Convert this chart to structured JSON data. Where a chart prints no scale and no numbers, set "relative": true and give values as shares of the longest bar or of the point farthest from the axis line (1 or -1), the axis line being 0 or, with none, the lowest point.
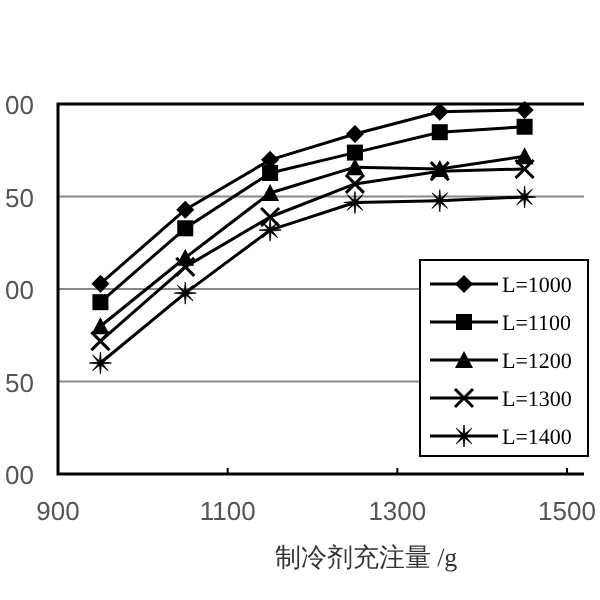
{
  "chart_data": {
    "type": "line",
    "xlabel": "制冷剂充注量 /g",
    "x": [
      950,
      1050,
      1150,
      1250,
      1350,
      1450
    ],
    "series": [
      {
        "name": "L=1000",
        "color": "#000000",
        "marker": "diamond",
        "values": [
          0.523,
          0.726,
          0.863,
          0.934,
          0.995,
          1
        ]
      },
      {
        "name": "L=1100",
        "color": "#000000",
        "marker": "square",
        "values": [
          0.472,
          0.675,
          0.827,
          0.883,
          0.939,
          0.954
        ]
      },
      {
        "name": "L=1200",
        "color": "#000000",
        "marker": "triangle",
        "values": [
          0.406,
          0.594,
          0.772,
          0.843,
          0.838,
          0.873
        ]
      },
      {
        "name": "L=1300",
        "color": "#000000",
        "marker": "cross",
        "values": [
          0.365,
          0.569,
          0.706,
          0.797,
          0.832,
          0.838
        ]
      },
      {
        "name": "L=1400",
        "color": "#000000",
        "marker": "star",
        "values": [
          0.305,
          0.497,
          0.67,
          0.746,
          0.751,
          0.761
        ]
      }
    ],
    "relative": true,
    "annotations": [
      "00",
      "50",
      "00",
      "50",
      "00"
    ],
    "xlim": [
      900,
      1520
    ],
    "xticks": [
      900,
      1100,
      1300,
      1500
    ],
    "grid": "y",
    "legend": "right",
    "line_style": "solid"
  }
}
